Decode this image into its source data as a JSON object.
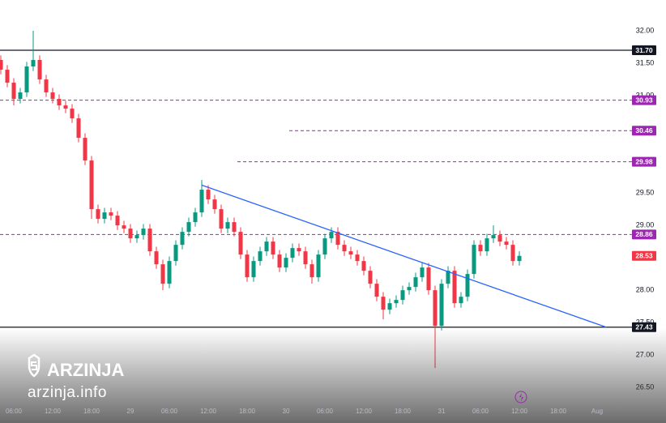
{
  "chart_data": {
    "type": "candlestick",
    "x": [
      4,
      5,
      6,
      7,
      8,
      9,
      10,
      11,
      12,
      13,
      14,
      15,
      16,
      17,
      18,
      19,
      20,
      21,
      22,
      23,
      24,
      25,
      26,
      27,
      28,
      29,
      30,
      31,
      32,
      33,
      34,
      35,
      36,
      37,
      38,
      39,
      40,
      41,
      42,
      43,
      44,
      45,
      46,
      47,
      48,
      49,
      50,
      51,
      52,
      53,
      54,
      55,
      56,
      57,
      58,
      59,
      60,
      61,
      62,
      63,
      64,
      65,
      66,
      67,
      68,
      69,
      70,
      71,
      72,
      73,
      74,
      75,
      76,
      77,
      78,
      79,
      80,
      81,
      82,
      83,
      84
    ],
    "open": [
      31.55,
      31.4,
      31.2,
      30.95,
      31.05,
      31.45,
      31.55,
      31.25,
      31.05,
      30.95,
      30.85,
      30.8,
      30.65,
      30.35,
      30.0,
      29.25,
      29.1,
      29.2,
      29.15,
      29.0,
      28.95,
      28.8,
      28.85,
      28.95,
      28.6,
      28.4,
      28.1,
      28.45,
      28.7,
      28.9,
      29.05,
      29.2,
      29.55,
      29.4,
      29.25,
      28.95,
      29.05,
      28.9,
      28.55,
      28.2,
      28.45,
      28.6,
      28.75,
      28.55,
      28.35,
      28.5,
      28.65,
      28.6,
      28.4,
      28.2,
      28.55,
      28.8,
      28.9,
      28.7,
      28.6,
      28.55,
      28.45,
      28.3,
      28.1,
      27.9,
      27.7,
      27.8,
      27.85,
      28.0,
      28.05,
      28.2,
      28.35,
      28.0,
      27.45,
      28.1,
      28.3,
      27.8,
      27.9,
      28.25,
      28.7,
      28.6,
      28.8,
      28.85,
      28.75,
      28.7,
      28.45
    ],
    "high": [
      31.62,
      31.47,
      31.27,
      31.12,
      31.52,
      32.0,
      31.62,
      31.32,
      31.12,
      31.02,
      30.92,
      30.87,
      30.72,
      30.42,
      30.07,
      29.32,
      29.27,
      29.27,
      29.22,
      29.07,
      29.02,
      28.92,
      29.02,
      29.02,
      28.67,
      28.47,
      28.52,
      28.77,
      28.97,
      29.12,
      29.27,
      29.7,
      29.62,
      29.47,
      29.32,
      29.12,
      29.12,
      28.97,
      28.62,
      28.52,
      28.67,
      28.82,
      28.82,
      28.62,
      28.57,
      28.72,
      28.72,
      28.67,
      28.47,
      28.62,
      28.87,
      28.97,
      28.97,
      28.77,
      28.67,
      28.62,
      28.52,
      28.37,
      28.17,
      27.97,
      27.87,
      27.92,
      28.07,
      28.12,
      28.27,
      28.42,
      28.42,
      28.07,
      28.17,
      28.37,
      28.37,
      27.97,
      28.32,
      28.77,
      28.77,
      28.87,
      29.0,
      28.92,
      28.82,
      28.77,
      28.6
    ],
    "low": [
      31.33,
      31.13,
      30.85,
      30.88,
      30.98,
      31.38,
      31.18,
      30.98,
      30.88,
      30.78,
      30.73,
      30.58,
      30.28,
      29.93,
      29.1,
      29.03,
      29.03,
      29.08,
      28.93,
      28.88,
      28.73,
      28.73,
      28.78,
      28.53,
      28.33,
      28.0,
      28.03,
      28.38,
      28.63,
      28.83,
      28.98,
      29.13,
      29.33,
      29.18,
      28.88,
      28.88,
      28.83,
      28.48,
      28.13,
      28.13,
      28.38,
      28.53,
      28.48,
      28.28,
      28.28,
      28.43,
      28.53,
      28.33,
      28.1,
      28.13,
      28.48,
      28.73,
      28.63,
      28.53,
      28.48,
      28.38,
      28.23,
      28.03,
      27.83,
      27.55,
      27.63,
      27.73,
      27.78,
      27.93,
      27.98,
      28.13,
      27.93,
      26.8,
      27.38,
      28.03,
      27.73,
      27.73,
      27.83,
      28.18,
      28.53,
      28.53,
      28.73,
      28.68,
      28.63,
      28.38,
      28.38
    ],
    "close": [
      31.4,
      31.2,
      30.95,
      31.05,
      31.45,
      31.55,
      31.25,
      31.05,
      30.95,
      30.85,
      30.8,
      30.65,
      30.35,
      30.0,
      29.25,
      29.1,
      29.2,
      29.15,
      29.0,
      28.95,
      28.8,
      28.85,
      28.95,
      28.6,
      28.4,
      28.1,
      28.45,
      28.7,
      28.9,
      29.05,
      29.2,
      29.55,
      29.4,
      29.25,
      28.95,
      29.05,
      28.9,
      28.55,
      28.2,
      28.45,
      28.6,
      28.75,
      28.55,
      28.35,
      28.5,
      28.65,
      28.6,
      28.4,
      28.2,
      28.55,
      28.8,
      28.9,
      28.7,
      28.6,
      28.55,
      28.45,
      28.3,
      28.1,
      27.9,
      27.7,
      27.8,
      27.85,
      28.0,
      28.05,
      28.2,
      28.35,
      28.0,
      27.45,
      28.1,
      28.3,
      27.8,
      27.9,
      28.25,
      28.7,
      28.6,
      28.8,
      28.85,
      28.75,
      28.7,
      28.45,
      28.53
    ],
    "up_color": "#089981",
    "down_color": "#f23645",
    "xlim": [
      3.875,
      100.75
    ],
    "xticks": [
      {
        "value": 6,
        "label": "06:00"
      },
      {
        "value": 12,
        "label": "12:00"
      },
      {
        "value": 18,
        "label": "18:00"
      },
      {
        "value": 24,
        "label": "29"
      },
      {
        "value": 30,
        "label": "06:00"
      },
      {
        "value": 36,
        "label": "12:00"
      },
      {
        "value": 42,
        "label": "18:00"
      },
      {
        "value": 48,
        "label": "30"
      },
      {
        "value": 54,
        "label": "06:00"
      },
      {
        "value": 60,
        "label": "12:00"
      },
      {
        "value": 66,
        "label": "18:00"
      },
      {
        "value": 72,
        "label": "31"
      },
      {
        "value": 78,
        "label": "06:00"
      },
      {
        "value": 84,
        "label": "12:00"
      },
      {
        "value": 90,
        "label": "18:00"
      },
      {
        "value": 96,
        "label": "Aug"
      }
    ],
    "ylim": [
      26.29,
      32.475
    ],
    "yticks": [
      {
        "value": 26.5,
        "label": "26.50"
      },
      {
        "value": 27,
        "label": "27.00"
      },
      {
        "value": 27.5,
        "label": "27.50"
      },
      {
        "value": 28,
        "label": "28.00"
      },
      {
        "value": 29,
        "label": "29.00"
      },
      {
        "value": 29.5,
        "label": "29.50"
      },
      {
        "value": 31,
        "label": "31.00"
      },
      {
        "value": 31.5,
        "label": "31.50"
      },
      {
        "value": 32,
        "label": "32.00"
      }
    ],
    "grid": false,
    "levels": [
      {
        "value": 31.7,
        "label": "31.70",
        "color": "#131722",
        "dashed": false
      },
      {
        "value": 30.93,
        "label": "30.93",
        "color": "#9c27b0",
        "dashed": true
      },
      {
        "value": 30.46,
        "label": "30.46",
        "color": "#9c27b0",
        "dashed": true,
        "from_x": 48.5
      },
      {
        "value": 29.98,
        "label": "29.98",
        "color": "#9c27b0",
        "dashed": true,
        "from_x": 40.5
      },
      {
        "value": 28.86,
        "label": "28.86",
        "color": "#9c27b0",
        "dashed": true
      },
      {
        "value": 27.43,
        "label": "27.43",
        "color": "#131722",
        "dashed": false
      }
    ],
    "trendline": {
      "x": [
        35,
        97.4
      ],
      "y": [
        29.62,
        27.43
      ],
      "color": "#2962ff"
    },
    "last_price": {
      "value": 28.53,
      "label": "28.53",
      "color": "#f23645"
    }
  },
  "watermark": {
    "brand": "ARZINJA",
    "site": "arzinja.info"
  }
}
